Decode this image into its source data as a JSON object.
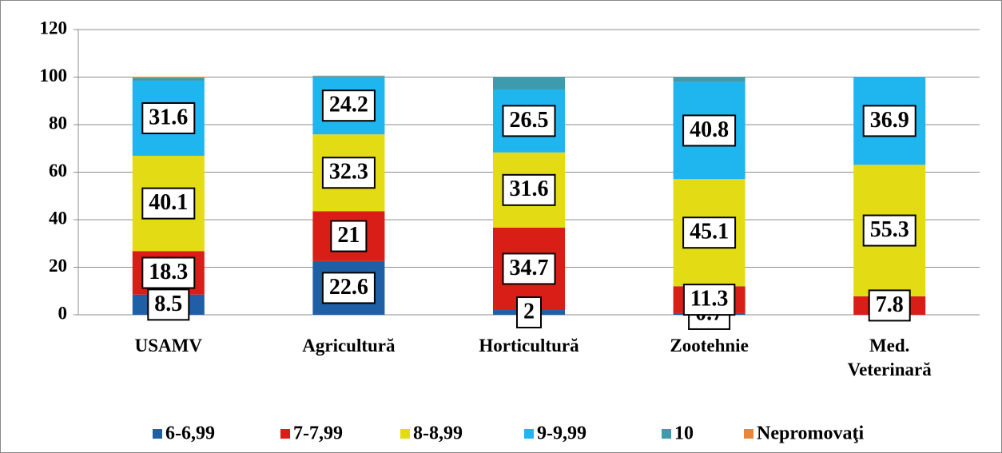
{
  "chart_data": {
    "type": "stacked_bar",
    "categories": [
      "USAMV",
      "Agricultură",
      "Horticultură",
      "Zootehnie",
      "Med. Veterinară"
    ],
    "series": [
      {
        "name": "6-6,99",
        "color": "#1f5fa6",
        "values": [
          8.5,
          22.6,
          2,
          0.7,
          null
        ],
        "show_labels": true
      },
      {
        "name": "7-7,99",
        "color": "#d91e18",
        "values": [
          18.3,
          21,
          34.7,
          11.3,
          7.8
        ],
        "show_labels": true
      },
      {
        "name": "8-8,99",
        "color": "#e3dc14",
        "values": [
          40.1,
          32.3,
          31.6,
          45.1,
          55.3
        ],
        "show_labels": true
      },
      {
        "name": "9-9,99",
        "color": "#1fb5ef",
        "values": [
          31.6,
          24.2,
          26.5,
          40.8,
          36.9
        ],
        "show_labels": true
      },
      {
        "name": "10",
        "color": "#3d9bad",
        "values": [
          1.2,
          0.3,
          5.2,
          2.1,
          0
        ],
        "show_labels": false
      },
      {
        "name": "Nepromovaţi",
        "color": "#e8873a",
        "values": [
          0.5,
          0.2,
          0,
          0,
          0
        ],
        "show_labels": false
      }
    ],
    "ylim": [
      0,
      120
    ],
    "yticks": [
      0,
      20,
      40,
      60,
      80,
      100,
      120
    ],
    "grid": true,
    "legend": "bottom"
  }
}
